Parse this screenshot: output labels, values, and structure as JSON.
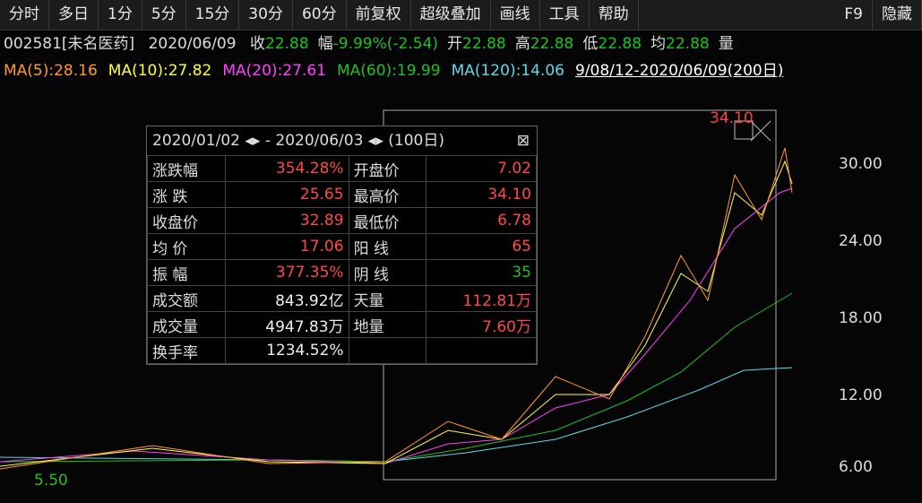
{
  "toolbar": [
    "分时",
    "多日",
    "1分",
    "5分",
    "15分",
    "30分",
    "60分",
    "前复权",
    "超级叠加",
    "画线",
    "工具",
    "帮助",
    "F9",
    "隐藏"
  ],
  "info": {
    "code": "002581[未名医药]",
    "date": "2020/06/09",
    "fields": [
      {
        "label": "收",
        "value": "22.88"
      },
      {
        "label": "幅",
        "value": "-9.99%(-2.54)"
      },
      {
        "label": "开",
        "value": "22.88"
      },
      {
        "label": "高",
        "value": "22.88"
      },
      {
        "label": "低",
        "value": "22.88"
      },
      {
        "label": "均",
        "value": "22.88"
      },
      {
        "label": "量",
        "value": ""
      }
    ]
  },
  "ma": [
    {
      "text": "MA(5):28.16",
      "color": "#ff9a2e"
    },
    {
      "text": "MA(10):27.82",
      "color": "#ffff40"
    },
    {
      "text": "MA(20):27.61",
      "color": "#ff40ff"
    },
    {
      "text": "MA(60):19.99",
      "color": "#20c020"
    },
    {
      "text": "MA(120):14.06",
      "color": "#60d8e8"
    }
  ],
  "range": "9/08/12-2020/06/09(200日)",
  "stats": {
    "start": "2020/01/02",
    "end": "- 2020/06/03",
    "days": "(100日)",
    "rows": [
      [
        "涨跌幅",
        "354.28%",
        "开盘价",
        "7.02"
      ],
      [
        "涨 跌",
        "25.65",
        "最高价",
        "34.10"
      ],
      [
        "收盘价",
        "32.89",
        "最低价",
        "6.78"
      ],
      [
        "均 价",
        "17.06",
        "阳 线",
        "65"
      ],
      [
        "振 幅",
        "377.35%",
        "阴 线",
        "35"
      ],
      [
        "成交额",
        "843.92亿",
        "天量",
        "112.81万"
      ],
      [
        "成交量",
        "4947.83万",
        "地量",
        "7.60万"
      ],
      [
        "换手率",
        "1234.52%",
        "",
        ""
      ]
    ]
  },
  "axis": [
    "30.00",
    "24.00",
    "18.00",
    "12.00",
    "6.00"
  ],
  "annotations": {
    "high": "34.10",
    "low": "5.50"
  }
}
